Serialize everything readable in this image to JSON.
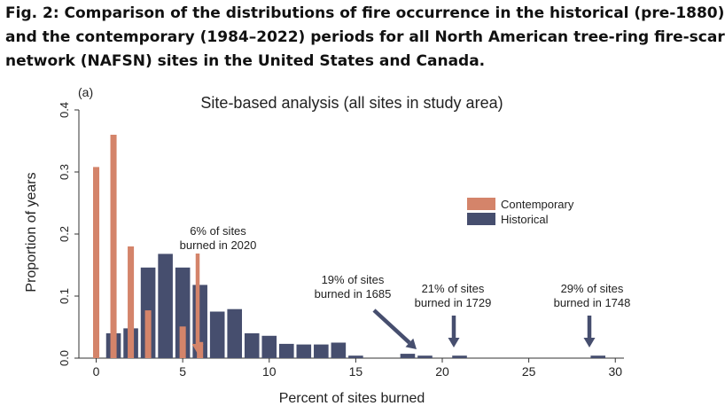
{
  "caption": {
    "lines": [
      "Fig. 2: Comparison of the distributions of fire occurrence in the historical (pre-1880)",
      "and the contemporary (1984–2022) periods for all North American tree-ring fire-scar",
      "network (NAFSN) sites in the United States and Canada."
    ]
  },
  "chart_data": {
    "type": "bar",
    "panel_label": "(a)",
    "title": "Site-based analysis (all sites in study area)",
    "xlabel": "Percent of sites burned",
    "ylabel": "Proportion of years",
    "xlim": [
      -1,
      30.5
    ],
    "ylim": [
      0,
      0.4
    ],
    "xticks": [
      0,
      5,
      10,
      15,
      20,
      25,
      30
    ],
    "yticks": [
      0.0,
      0.1,
      0.2,
      0.3,
      0.4
    ],
    "ytick_labels": [
      "0.0",
      "0.1",
      "0.2",
      "0.3",
      "0.4"
    ],
    "grid": false,
    "legend_position": "right",
    "colors": {
      "Contemporary": "#d4846a",
      "Historical": "#464e6e"
    },
    "series": [
      {
        "name": "Historical",
        "x": [
          1,
          2,
          3,
          4,
          5,
          6,
          7,
          8,
          9,
          10,
          11,
          12,
          13,
          14,
          15,
          18,
          19,
          21,
          29
        ],
        "values": [
          0.04,
          0.048,
          0.146,
          0.168,
          0.146,
          0.118,
          0.075,
          0.079,
          0.04,
          0.036,
          0.023,
          0.022,
          0.022,
          0.025,
          0.004,
          0.007,
          0.004,
          0.004,
          0.004
        ]
      },
      {
        "name": "Contemporary",
        "x": [
          0,
          1,
          2,
          3,
          5,
          6
        ],
        "values": [
          0.308,
          0.36,
          0.18,
          0.077,
          0.051,
          0.026
        ]
      }
    ],
    "annotations": [
      {
        "id": "2020",
        "lines": [
          "6% of sites",
          "burned in 2020"
        ],
        "x": 6,
        "color": "#d4846a"
      },
      {
        "id": "1685",
        "lines": [
          "19% of sites",
          "burned in 1685"
        ],
        "x": 19,
        "color": "#464e6e"
      },
      {
        "id": "1729",
        "lines": [
          "21% of sites",
          "burned in 1729"
        ],
        "x": 21,
        "color": "#464e6e"
      },
      {
        "id": "1748",
        "lines": [
          "29% of sites",
          "burned in 1748"
        ],
        "x": 29,
        "color": "#464e6e"
      }
    ]
  }
}
